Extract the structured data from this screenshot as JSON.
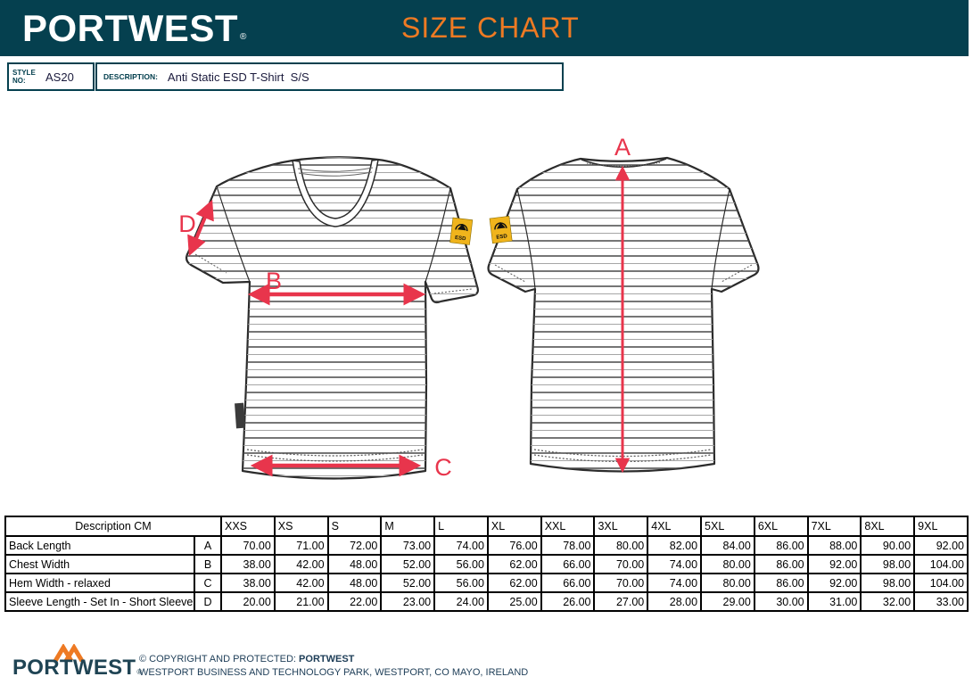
{
  "header": {
    "brand": "PORTWEST",
    "registered": "®",
    "title": "SIZE CHART"
  },
  "product": {
    "style_label": "STYLE NO:",
    "style_value": "AS20",
    "description_label": "DESCRIPTION:",
    "description_value": "Anti Static ESD T-Shirt  S/S"
  },
  "diagram": {
    "arrow_a": "A",
    "arrow_b": "B",
    "arrow_c": "C",
    "arrow_d": "D",
    "esd_text": "ESD"
  },
  "chart_data": {
    "type": "table",
    "title": "Size chart measurements (cm)",
    "header_description": "Description CM",
    "columns": [
      "XXS",
      "XS",
      "S",
      "M",
      "L",
      "XL",
      "XXL",
      "3XL",
      "4XL",
      "5XL",
      "6XL",
      "7XL",
      "8XL",
      "9XL"
    ],
    "rows": [
      {
        "label": "Back Length",
        "letter": "A",
        "values": [
          "70.00",
          "71.00",
          "72.00",
          "73.00",
          "74.00",
          "76.00",
          "78.00",
          "80.00",
          "82.00",
          "84.00",
          "86.00",
          "88.00",
          "90.00",
          "92.00"
        ]
      },
      {
        "label": "Chest Width",
        "letter": "B",
        "values": [
          "38.00",
          "42.00",
          "48.00",
          "52.00",
          "56.00",
          "62.00",
          "66.00",
          "70.00",
          "74.00",
          "80.00",
          "86.00",
          "92.00",
          "98.00",
          "104.00"
        ]
      },
      {
        "label": "Hem Width - relaxed",
        "letter": "C",
        "values": [
          "38.00",
          "42.00",
          "48.00",
          "52.00",
          "56.00",
          "62.00",
          "66.00",
          "70.00",
          "74.00",
          "80.00",
          "86.00",
          "92.00",
          "98.00",
          "104.00"
        ]
      },
      {
        "label": "Sleeve Length - Set In - Short Sleeve",
        "letter": "D",
        "values": [
          "20.00",
          "21.00",
          "22.00",
          "23.00",
          "24.00",
          "25.00",
          "26.00",
          "27.00",
          "28.00",
          "29.00",
          "30.00",
          "31.00",
          "32.00",
          "33.00"
        ]
      }
    ]
  },
  "footer": {
    "brand": "PORTWEST",
    "registered": "®",
    "copyright_prefix": "© COPYRIGHT AND PROTECTED: ",
    "copyright_brand": "PORTWEST",
    "address": "WESTPORT BUSINESS AND TECHNOLOGY PARK, WESTPORT, CO MAYO, IRELAND"
  },
  "colors": {
    "header_bg": "#05404f",
    "accent_orange": "#ee7a23",
    "arrow_red": "#e8354c",
    "esd_yellow": "#f0b41c",
    "footer_navy": "#1d3d57"
  }
}
